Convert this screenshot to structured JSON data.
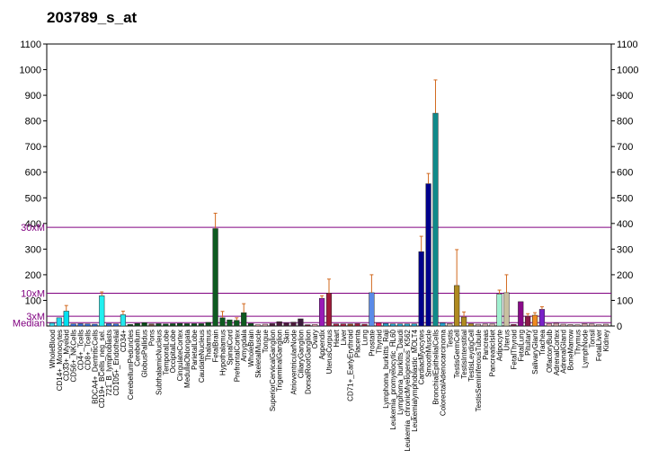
{
  "chart_data": {
    "type": "bar",
    "title": "203789_s_at",
    "ylim": [
      0,
      1100
    ],
    "yticks": [
      100,
      200,
      300,
      400,
      500,
      600,
      700,
      800,
      900,
      1000,
      1100
    ],
    "right_yticks": [
      0,
      100,
      200,
      300,
      400,
      500,
      600,
      700,
      800,
      900,
      1000,
      1100
    ],
    "reference_lines": [
      {
        "label": "30xM",
        "value": 385
      },
      {
        "label": "10xM",
        "value": 128
      },
      {
        "label": "3xM",
        "value": 38
      },
      {
        "label": "Median",
        "value": 13
      }
    ],
    "categories": [
      "WholeBlood",
      "CD14+_Monocytes",
      "CD33+_Myeloid",
      "CD56+_NKCells",
      "CD4+_Tcells",
      "CD8+_Tcells",
      "BDCA4+_DentriticCells",
      "CD19+_BCells_neg_sel.",
      "721_B_lymphoblasts",
      "CD105+_Endothelial",
      "CD34+",
      "CerebellumPeduncles",
      "Cerebellum",
      "GlobusPallidus",
      "Pons",
      "SubthalamicNucleus",
      "TemporalLobe",
      "OccipitalLobe",
      "CingulateCortex",
      "MedullaOblongata",
      "ParietalLobe",
      "CaudateNucleus",
      "Thalamus",
      "FetalBrain",
      "Hypothalamus",
      "SpinalCord",
      "PrefrontalCortex",
      "Amygdala",
      "WholeBrain",
      "SkeletalMuscle",
      "Tongue",
      "SuperiorCervicalGanglion",
      "TrigeminalGanglion",
      "Skin",
      "AtrioventricularNode",
      "CiliaryGanglion",
      "DorsalRootGanglion",
      "Ovary",
      "Appendix",
      "UterusCorpus",
      "Heart",
      "Liver",
      "CD71+_EarlyErythroid",
      "Placenta",
      "Lung",
      "Prostate",
      "Thyroid",
      "Lymphoma_burkitts_Raji",
      "Leukemia_promyelocytic_HL60",
      "Lymphoma_burkitts_Daudi",
      "Leukemia_chronicMyelogenous_K562",
      "Leukemialymphoblastic_MOLT4",
      "CardiacMyocytes",
      "SmoothMuscle",
      "BronchialEpithelialCells",
      "ColorectalAdenocarcinoma",
      "Testis",
      "TestisGermCell",
      "TestisInterstitial",
      "TestisLeydigCell",
      "TestisSeminiferousTubule",
      "Pancreas",
      "PancreaticIslet",
      "Adipocyte",
      "Uterus",
      "FetalThyroid",
      "FetalLung",
      "Pituitary",
      "SalivaryGland",
      "Trachea",
      "OlfactoryBulb",
      "AdrenalCortex",
      "AdrenalGland",
      "BoneMarrow",
      "Thymus",
      "LymphNode",
      "Tonsil",
      "FetalLiver",
      "Kidney"
    ],
    "values": [
      12,
      32,
      58,
      8,
      9,
      8,
      7,
      118,
      9,
      8,
      44,
      6,
      10,
      13,
      8,
      9,
      8,
      9,
      10,
      9,
      9,
      9,
      14,
      380,
      32,
      24,
      22,
      52,
      10,
      5,
      7,
      9,
      17,
      12,
      15,
      28,
      5,
      6,
      108,
      128,
      8,
      8,
      8,
      9,
      7,
      130,
      12,
      10,
      8,
      8,
      8,
      8,
      290,
      555,
      830,
      12,
      9,
      158,
      35,
      9,
      7,
      8,
      8,
      125,
      130,
      6,
      95,
      38,
      42,
      65,
      9,
      11,
      7,
      6,
      5,
      9,
      8,
      5,
      7
    ],
    "errors": [
      0,
      0,
      22,
      0,
      0,
      0,
      0,
      15,
      0,
      0,
      14,
      0,
      0,
      0,
      0,
      0,
      0,
      0,
      0,
      0,
      0,
      0,
      0,
      60,
      25,
      0,
      10,
      35,
      0,
      0,
      0,
      0,
      0,
      0,
      0,
      0,
      0,
      0,
      10,
      55,
      0,
      0,
      0,
      0,
      0,
      70,
      0,
      0,
      0,
      0,
      0,
      0,
      60,
      40,
      130,
      0,
      0,
      140,
      20,
      0,
      0,
      0,
      0,
      15,
      70,
      0,
      0,
      10,
      10,
      10,
      0,
      0,
      0,
      0,
      0,
      0,
      0,
      0,
      0
    ],
    "colors": [
      "#38D8E8",
      "#22D8EE",
      "#00E0F0",
      "#2E6BD6",
      "#2E6BD6",
      "#2E6BD6",
      "#2E6BD6",
      "#22F0F0",
      "#2E6BD6",
      "#2E6BD6",
      "#22E8EE",
      "#0A4D1A",
      "#0A4D1A",
      "#0A4D1A",
      "#6B4A3A",
      "#0A4D1A",
      "#0A4D1A",
      "#0A4D1A",
      "#0A4D1A",
      "#0A4D1A",
      "#0A4D1A",
      "#0A4D1A",
      "#0A4D1A",
      "#0E5A20",
      "#0E5A20",
      "#0E5A20",
      "#0E5A20",
      "#0E5A20",
      "#0A4D1A",
      "#E8A0B0",
      "#D8A0B0",
      "#4A1A3A",
      "#4A1A3A",
      "#4A1A3A",
      "#4A1A3A",
      "#3A1A3A",
      "#6B0A2A",
      "#F0A0B8",
      "#9A1AB8",
      "#A01A3A",
      "#A01A3A",
      "#A01A3A",
      "#8A3A1A",
      "#A01A3A",
      "#A01A3A",
      "#5A8AE8",
      "#F01A5A",
      "#20A0C8",
      "#20A0C8",
      "#20A0C8",
      "#20A0C8",
      "#20A0C8",
      "#00008B",
      "#00008B",
      "#108A8A",
      "#20A0C8",
      "#C8B0A0",
      "#B08A20",
      "#B08A20",
      "#B08A20",
      "#C8A0A0",
      "#C8A0A0",
      "#C8A0A0",
      "#A0F0D0",
      "#C8C0A0",
      "#8A1A4A",
      "#8A0A8A",
      "#8A1A4A",
      "#F08A20",
      "#7A20C8",
      "#E8A0A8",
      "#C8A0A0",
      "#C8A0A0",
      "#C8A0A0",
      "#C8A0A0",
      "#C8A0A0",
      "#C8A0A0",
      "#C8A0A0",
      "#C8A0A0"
    ]
  }
}
